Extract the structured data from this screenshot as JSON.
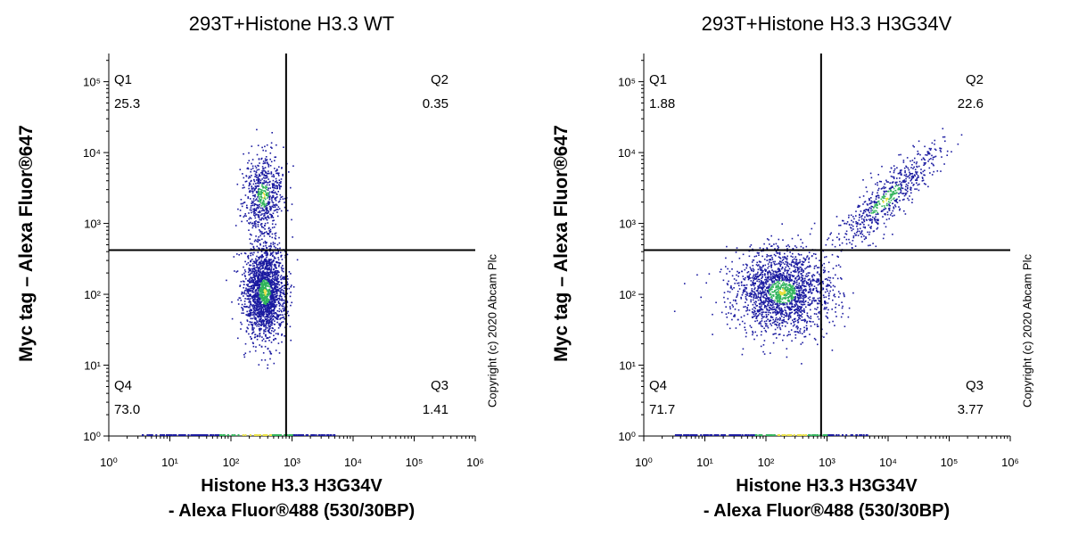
{
  "chart_data": [
    {
      "type": "scatter",
      "title": "293T+Histone H3.3 WT",
      "xlabel_line1": "Histone H3.3 H3G34V",
      "xlabel_line2": "- Alexa Fluor®488 (530/30BP)",
      "ylabel": "Myc tag – Alexa Fluor®647",
      "copyright": "Copyright (c) 2020 Abcam Plc",
      "x_scale": "log",
      "y_scale": "log",
      "xlim": [
        1,
        1000000
      ],
      "ylim": [
        1,
        250000
      ],
      "x_tick_labels": [
        "10⁰",
        "10¹",
        "10²",
        "10³",
        "10⁴",
        "10⁵",
        "10⁶"
      ],
      "y_tick_labels": [
        "10⁰",
        "10¹",
        "10²",
        "10³",
        "10⁴",
        "10⁵"
      ],
      "gate": {
        "x": 800,
        "y": 420
      },
      "quadrants": [
        {
          "name": "Q1",
          "value": "25.3",
          "position": "top-left"
        },
        {
          "name": "Q2",
          "value": "0.35",
          "position": "top-right"
        },
        {
          "name": "Q3",
          "value": "1.41",
          "position": "bottom-right"
        },
        {
          "name": "Q4",
          "value": "73.0",
          "position": "bottom-left"
        }
      ],
      "populations": [
        {
          "center_x": 350,
          "center_y": 110,
          "sd_logx": 0.17,
          "sd_logy": 0.32,
          "fraction": 0.73
        },
        {
          "center_x": 330,
          "center_y": 2500,
          "sd_logx": 0.16,
          "sd_logy": 0.3,
          "fraction": 0.25
        }
      ],
      "colors": {
        "sparse": "#1a1aa0",
        "dense": "#2fb35a",
        "peak": "#e8e040"
      }
    },
    {
      "type": "scatter",
      "title": "293T+Histone H3.3 H3G34V",
      "xlabel_line1": "Histone H3.3 H3G34V",
      "xlabel_line2": "- Alexa Fluor®488 (530/30BP)",
      "ylabel": "Myc tag – Alexa Fluor®647",
      "copyright": "Copyright (c) 2020 Abcam Plc",
      "x_scale": "log",
      "y_scale": "log",
      "xlim": [
        1,
        1000000
      ],
      "ylim": [
        1,
        250000
      ],
      "x_tick_labels": [
        "10⁰",
        "10¹",
        "10²",
        "10³",
        "10⁴",
        "10⁵",
        "10⁶"
      ],
      "y_tick_labels": [
        "10⁰",
        "10¹",
        "10²",
        "10³",
        "10⁴",
        "10⁵"
      ],
      "gate": {
        "x": 800,
        "y": 420
      },
      "quadrants": [
        {
          "name": "Q1",
          "value": "1.88",
          "position": "top-left"
        },
        {
          "name": "Q2",
          "value": "22.6",
          "position": "top-right"
        },
        {
          "name": "Q3",
          "value": "3.77",
          "position": "bottom-right"
        },
        {
          "name": "Q4",
          "value": "71.7",
          "position": "bottom-left"
        }
      ],
      "populations": [
        {
          "center_x": 180,
          "center_y": 110,
          "sd_logx": 0.4,
          "sd_logy": 0.3,
          "fraction": 0.72
        },
        {
          "center_x": 9000,
          "center_y": 2200,
          "sd_logx": 0.45,
          "sd_logy": 0.35,
          "fraction": 0.24
        }
      ],
      "colors": {
        "sparse": "#1a1aa0",
        "dense": "#2fb35a",
        "peak": "#e8e040"
      }
    }
  ]
}
